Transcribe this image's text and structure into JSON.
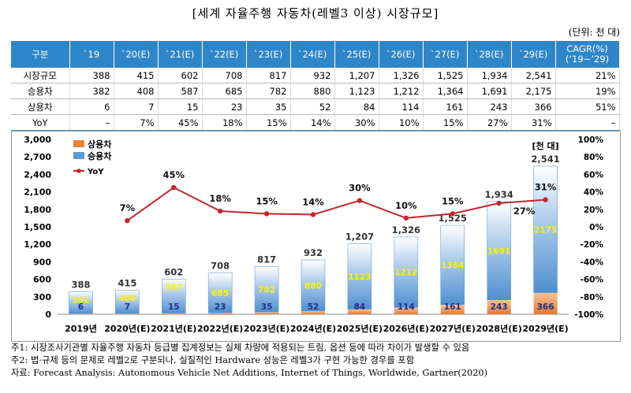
{
  "title": "[세계 자율주행 자동차(레벨3 이상) 시장규모]",
  "unit": "(단위: 천 대)",
  "table": {
    "header": [
      "구분",
      "`19",
      "`20(E)",
      "`21(E)",
      "`22(E)",
      "`23(E)",
      "`24(E)",
      "`25(E)",
      "`26(E)",
      "`27(E)",
      "`28(E)",
      "`29(E)",
      "CAGR(%)",
      "(‘19~’29)"
    ],
    "rows": [
      {
        "label": "시장규모",
        "values": [
          "388",
          "415",
          "602",
          "708",
          "817",
          "932",
          "1,207",
          "1,326",
          "1,525",
          "1,934",
          "2,541"
        ],
        "cagr": "21%"
      },
      {
        "label": "승용차",
        "values": [
          "382",
          "408",
          "587",
          "685",
          "782",
          "880",
          "1,123",
          "1,212",
          "1,364",
          "1,691",
          "2,175"
        ],
        "cagr": "19%"
      },
      {
        "label": "상용차",
        "values": [
          "6",
          "7",
          "15",
          "23",
          "35",
          "52",
          "84",
          "114",
          "161",
          "243",
          "366"
        ],
        "cagr": "51%"
      },
      {
        "label": "YoY",
        "values": [
          "–",
          "7%",
          "45%",
          "18%",
          "15%",
          "14%",
          "30%",
          "10%",
          "15%",
          "27%",
          "31%"
        ],
        "cagr": "–"
      }
    ]
  },
  "chart_data": {
    "type": "bar",
    "stacked": true,
    "categories": [
      "2019년",
      "2020년(E)",
      "2021년(E)",
      "2022년(E)",
      "2023년(E)",
      "2024년(E)",
      "2025년(E)",
      "2026년(E)",
      "2027년(E)",
      "2028년(E)",
      "2029년(E)"
    ],
    "series": [
      {
        "name": "상용차",
        "values": [
          6,
          7,
          15,
          23,
          35,
          52,
          84,
          114,
          161,
          243,
          366
        ],
        "color": "#e8823a"
      },
      {
        "name": "승용차",
        "values": [
          382,
          408,
          587,
          685,
          782,
          880,
          1123,
          1212,
          1364,
          1691,
          2175
        ],
        "color": "#5b9bd5"
      }
    ],
    "totals": [
      388,
      415,
      602,
      708,
      817,
      932,
      1207,
      1326,
      1525,
      1934,
      2541
    ],
    "total_labels": [
      "388",
      "415",
      "602",
      "708",
      "817",
      "932",
      "1,207",
      "1,326",
      "1,525",
      "1,934",
      "2,541"
    ],
    "yoy": {
      "name": "YoY",
      "values": [
        null,
        7,
        45,
        18,
        15,
        14,
        30,
        10,
        15,
        27,
        31
      ],
      "labels": [
        "",
        "7%",
        "45%",
        "18%",
        "15%",
        "14%",
        "30%",
        "10%",
        "15%",
        "27%",
        "31%"
      ],
      "color": "#c0272d"
    },
    "y_left": {
      "min": 0,
      "max": 3000,
      "ticks": [
        "0",
        "300",
        "600",
        "900",
        "1,200",
        "1,500",
        "1,800",
        "2,100",
        "2,400",
        "2,700",
        "3,000"
      ]
    },
    "y_right": {
      "min": -100,
      "max": 100,
      "ticks": [
        "-100%",
        "-80%",
        "-60%",
        "-40%",
        "-20%",
        "0%",
        "20%",
        "40%",
        "60%",
        "80%",
        "100%"
      ]
    },
    "unit_label": "[천 대]",
    "legend_position": "top-left",
    "grid": false
  },
  "notes": [
    "주1: 시장조사기관별 자율주행 자동차 등급별 집계정보는 실체 차량에 적용되는 트림, 옵션 등에 따라 차이가 발생할 수 있음",
    "주2: 법·규제 등의 문제로 레벨2로 구분되나, 실질적인 Hardware 성능은 레벨3가 구현 가능한 경우를 포함",
    "자료: Forecast Analysis: Autonomous Vehicle Net Additions, Internet of Things, Worldwide, Gartner(2020)"
  ]
}
